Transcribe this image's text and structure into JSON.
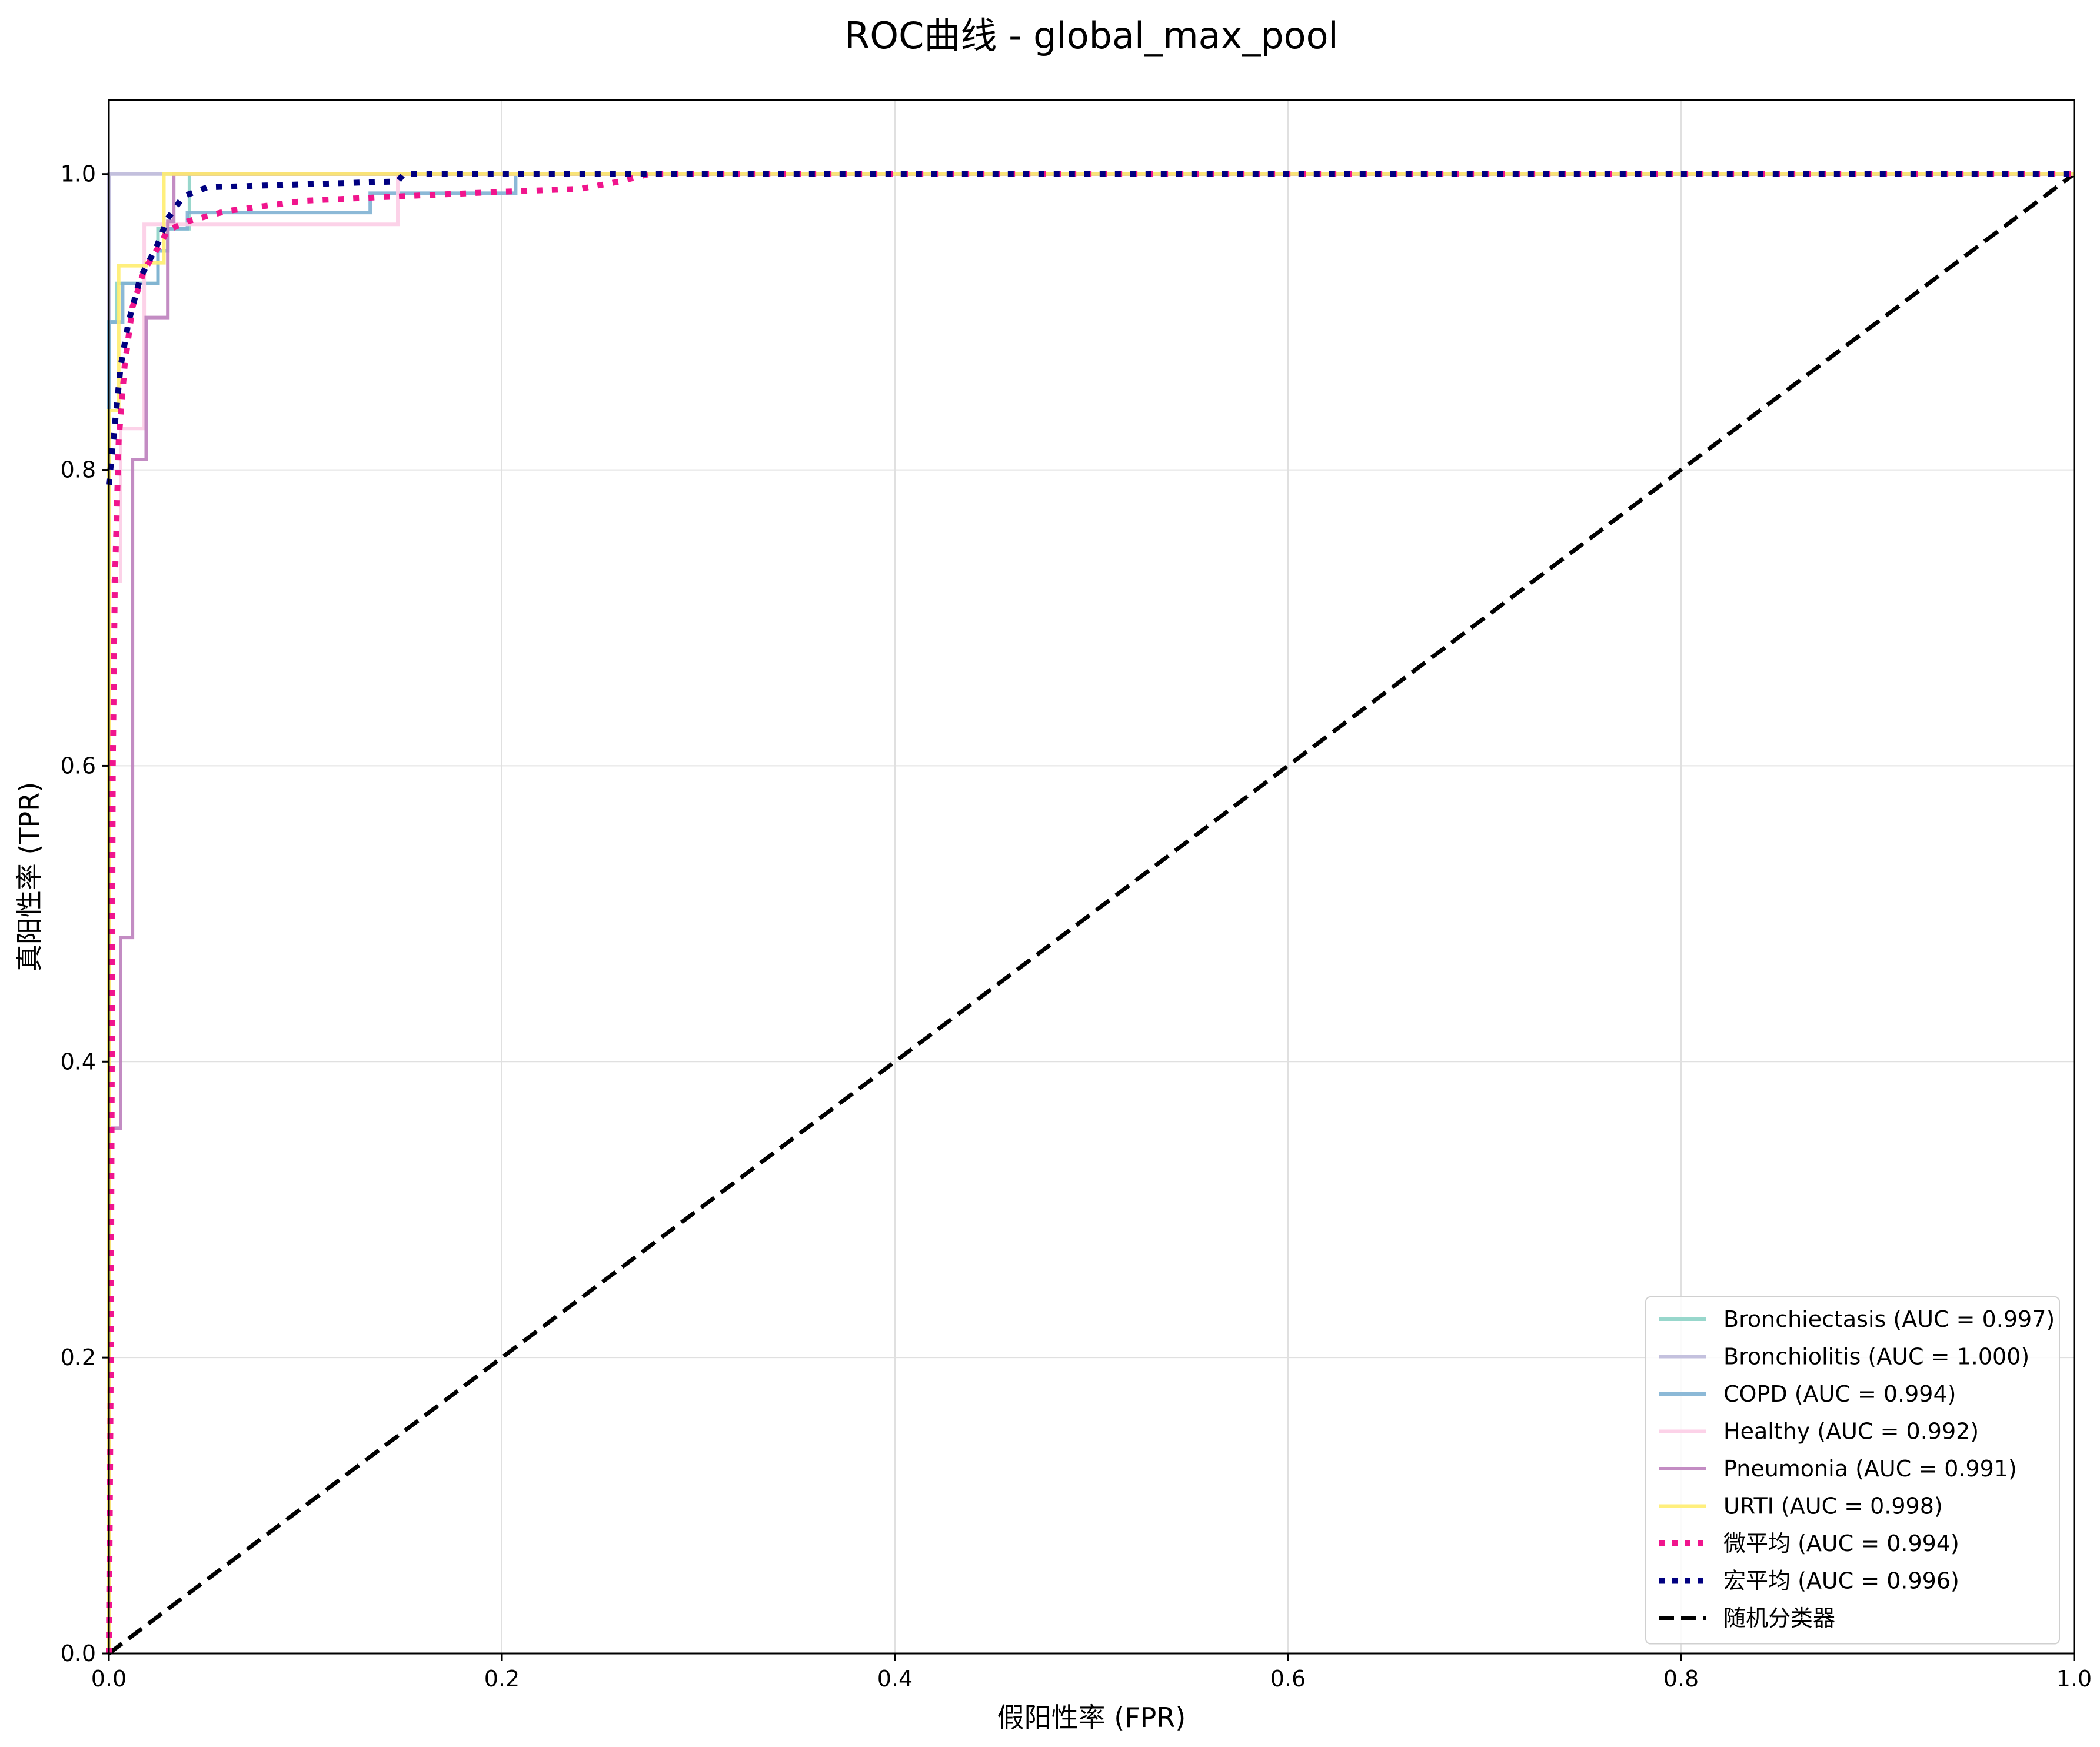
{
  "chart_data": {
    "type": "line",
    "title": "ROC曲线 - global_max_pool",
    "xlabel": "假阳性率 (FPR)",
    "ylabel": "真阳性率 (TPR)",
    "xlim": [
      0.0,
      1.0
    ],
    "ylim": [
      0.0,
      1.05
    ],
    "xticks": [
      0.0,
      0.2,
      0.4,
      0.6,
      0.8,
      1.0
    ],
    "yticks": [
      0.0,
      0.2,
      0.4,
      0.6,
      0.8,
      1.0
    ],
    "xtick_labels": [
      "0.0",
      "0.2",
      "0.4",
      "0.6",
      "0.8",
      "1.0"
    ],
    "ytick_labels": [
      "0.0",
      "0.2",
      "0.4",
      "0.6",
      "0.8",
      "1.0"
    ],
    "grid": true,
    "legend_position": "lower-right",
    "series": [
      {
        "name": "Bronchiectasis (AUC = 0.997)",
        "color": "#8dd3c7",
        "style": "solid",
        "points": [
          [
            0,
            0
          ],
          [
            0,
            0.9
          ],
          [
            0.004,
            0.9
          ],
          [
            0.004,
            0.926
          ],
          [
            0.025,
            0.926
          ],
          [
            0.025,
            0.963
          ],
          [
            0.041,
            0.963
          ],
          [
            0.041,
            1.0
          ],
          [
            1.0,
            1.0
          ]
        ]
      },
      {
        "name": "Bronchiolitis (AUC = 1.000)",
        "color": "#bebada",
        "style": "solid",
        "points": [
          [
            0,
            0
          ],
          [
            0,
            1.0
          ],
          [
            1.0,
            1.0
          ]
        ]
      },
      {
        "name": "COPD (AUC = 0.994)",
        "color": "#80b1d3",
        "style": "solid",
        "points": [
          [
            0,
            0
          ],
          [
            0,
            0.9
          ],
          [
            0.007,
            0.9
          ],
          [
            0.007,
            0.926
          ],
          [
            0.025,
            0.926
          ],
          [
            0.025,
            0.948
          ],
          [
            0.03,
            0.948
          ],
          [
            0.03,
            0.963
          ],
          [
            0.04,
            0.963
          ],
          [
            0.04,
            0.974
          ],
          [
            0.133,
            0.974
          ],
          [
            0.133,
            0.987
          ],
          [
            0.207,
            0.987
          ],
          [
            0.207,
            1.0
          ],
          [
            1.0,
            1.0
          ]
        ]
      },
      {
        "name": "Healthy (AUC = 0.992)",
        "color": "#fccde5",
        "style": "solid",
        "points": [
          [
            0,
            0
          ],
          [
            0,
            0.725
          ],
          [
            0.006,
            0.725
          ],
          [
            0.006,
            0.828
          ],
          [
            0.018,
            0.828
          ],
          [
            0.018,
            0.966
          ],
          [
            0.147,
            0.966
          ],
          [
            0.147,
            1.0
          ],
          [
            1.0,
            1.0
          ]
        ]
      },
      {
        "name": "Pneumonia (AUC = 0.991)",
        "color": "#bc80bd",
        "style": "solid",
        "points": [
          [
            0,
            0
          ],
          [
            0,
            0.355
          ],
          [
            0.006,
            0.355
          ],
          [
            0.006,
            0.484
          ],
          [
            0.012,
            0.484
          ],
          [
            0.012,
            0.807
          ],
          [
            0.019,
            0.807
          ],
          [
            0.019,
            0.903
          ],
          [
            0.03,
            0.903
          ],
          [
            0.03,
            0.968
          ],
          [
            0.033,
            0.968
          ],
          [
            0.033,
            1.0
          ],
          [
            1.0,
            1.0
          ]
        ]
      },
      {
        "name": "URTI (AUC = 0.998)",
        "color": "#ffed6f",
        "style": "solid",
        "points": [
          [
            0,
            0
          ],
          [
            0,
            0.84
          ],
          [
            0.005,
            0.84
          ],
          [
            0.005,
            0.938
          ],
          [
            0.019,
            0.938
          ],
          [
            0.019,
            0.94
          ],
          [
            0.028,
            0.94
          ],
          [
            0.028,
            1.0
          ],
          [
            1.0,
            1.0
          ]
        ]
      },
      {
        "name": "微平均 (AUC = 0.994)",
        "color": "#f0158d",
        "style": "dotted",
        "points": [
          [
            0,
            0
          ],
          [
            0.001,
            0.2
          ],
          [
            0.002,
            0.6
          ],
          [
            0.003,
            0.72
          ],
          [
            0.005,
            0.82
          ],
          [
            0.008,
            0.87
          ],
          [
            0.012,
            0.91
          ],
          [
            0.018,
            0.935
          ],
          [
            0.025,
            0.95
          ],
          [
            0.03,
            0.962
          ],
          [
            0.04,
            0.968
          ],
          [
            0.06,
            0.975
          ],
          [
            0.1,
            0.982
          ],
          [
            0.15,
            0.985
          ],
          [
            0.2,
            0.988
          ],
          [
            0.24,
            0.99
          ],
          [
            0.26,
            0.995
          ],
          [
            0.275,
            1.0
          ],
          [
            1.0,
            1.0
          ]
        ]
      },
      {
        "name": "宏平均 (AUC = 0.996)",
        "color": "#000080",
        "style": "dotted",
        "points": [
          [
            0,
            0.79
          ],
          [
            0.003,
            0.83
          ],
          [
            0.006,
            0.87
          ],
          [
            0.01,
            0.9
          ],
          [
            0.016,
            0.93
          ],
          [
            0.024,
            0.95
          ],
          [
            0.03,
            0.97
          ],
          [
            0.038,
            0.985
          ],
          [
            0.05,
            0.991
          ],
          [
            0.147,
            0.995
          ],
          [
            0.15,
            1.0
          ],
          [
            1.0,
            1.0
          ]
        ]
      },
      {
        "name": "随机分类器",
        "color": "#000000",
        "style": "dashed",
        "points": [
          [
            0,
            0
          ],
          [
            1.0,
            1.0
          ]
        ]
      }
    ]
  }
}
